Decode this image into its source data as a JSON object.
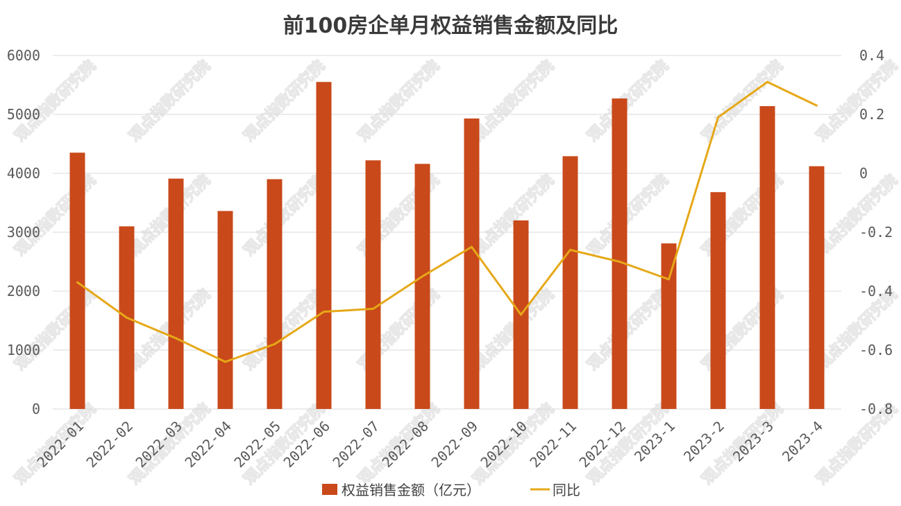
{
  "chart_data": {
    "type": "bar",
    "title": "前100房企单月权益销售金额及同比",
    "categories": [
      "2022-01",
      "2022-02",
      "2022-03",
      "2022-04",
      "2022-05",
      "2022-06",
      "2022-07",
      "2022-08",
      "2022-09",
      "2022-10",
      "2022-11",
      "2022-12",
      "2023-1",
      "2023-2",
      "2023-3",
      "2023-4"
    ],
    "series": [
      {
        "name": "权益销售金额（亿元）",
        "type": "bar",
        "axis": "left",
        "color": "#C9491A",
        "values": [
          4350,
          3100,
          3910,
          3360,
          3900,
          5550,
          4220,
          4160,
          4930,
          3200,
          4290,
          5270,
          2810,
          3680,
          5140,
          4120
        ]
      },
      {
        "name": "同比",
        "type": "line",
        "axis": "right",
        "color": "#E6A817",
        "values": [
          -0.37,
          -0.49,
          -0.56,
          -0.64,
          -0.58,
          -0.47,
          -0.46,
          -0.35,
          -0.25,
          -0.48,
          -0.26,
          -0.3,
          -0.36,
          0.19,
          0.31,
          0.23
        ]
      }
    ],
    "y_left": {
      "min": 0,
      "max": 6000,
      "ticks": [
        "0",
        "1000",
        "2000",
        "3000",
        "4000",
        "5000",
        "6000"
      ]
    },
    "y_right": {
      "min": -0.8,
      "max": 0.4,
      "ticks": [
        "-0.8",
        "-0.6",
        "-0.4",
        "-0.2",
        "0",
        "0.2",
        "0.4"
      ]
    },
    "grid": true,
    "legend_position": "bottom"
  },
  "watermark": "观点指数研究院"
}
